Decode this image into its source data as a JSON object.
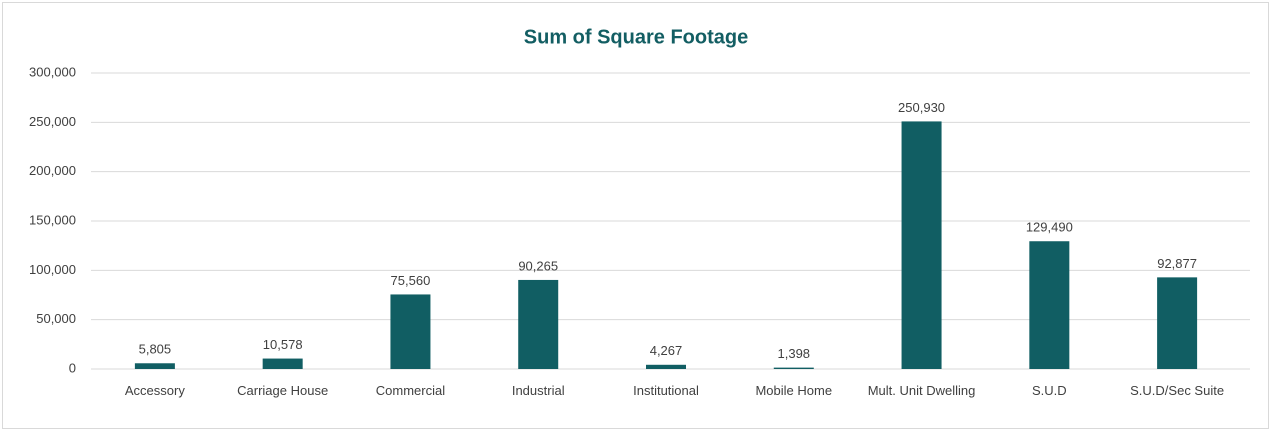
{
  "chart_data": {
    "type": "bar",
    "title": "Sum of Square Footage",
    "categories": [
      "Accessory",
      "Carriage House",
      "Commercial",
      "Industrial",
      "Institutional",
      "Mobile Home",
      "Mult. Unit Dwelling",
      "S.U.D",
      "S.U.D/Sec Suite"
    ],
    "values": [
      5805,
      10578,
      75560,
      90265,
      4267,
      1398,
      250930,
      129490,
      92877
    ],
    "value_labels": [
      "5,805",
      "10,578",
      "75,560",
      "90,265",
      "4,267",
      "1,398",
      "250,930",
      "129,490",
      "92,877"
    ],
    "color": "#115e63",
    "ylim": [
      0,
      300000
    ],
    "yticks": [
      0,
      {
        "value": 50000,
        "label": "50,000"
      },
      {
        "value": 100000,
        "label": "100,000"
      },
      {
        "value": 150000,
        "label": "150,000"
      },
      {
        "value": 200000,
        "label": "200,000"
      },
      {
        "value": 250000,
        "label": "250,000"
      },
      {
        "value": 300000,
        "label": "300,000"
      }
    ],
    "grid": true
  }
}
